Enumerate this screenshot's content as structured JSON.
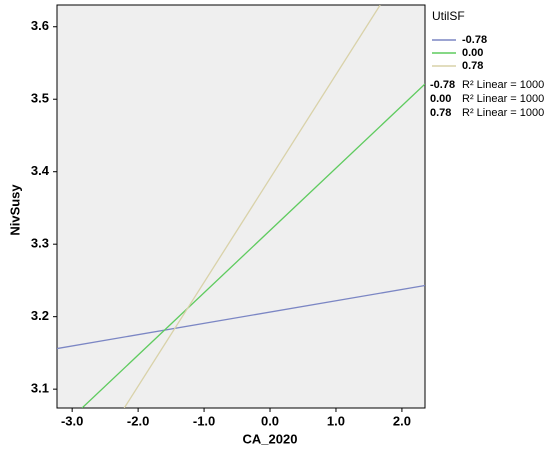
{
  "chart_data": {
    "type": "line",
    "x_label": "CA_2020",
    "y_label": "NivSusy",
    "legend_title": "UtilSF",
    "series": [
      {
        "name": "-0.78",
        "color": "#7b86c4",
        "x": [
          -3.23,
          2.35
        ],
        "y": [
          3.156,
          3.243
        ]
      },
      {
        "name": "0.00",
        "color": "#5fcb5f",
        "x": [
          -2.85,
          2.35
        ],
        "y": [
          3.074,
          3.521
        ]
      },
      {
        "name": "0.78",
        "color": "#d9d2a9",
        "x": [
          -2.21,
          1.67
        ],
        "y": [
          3.074,
          3.63
        ]
      }
    ],
    "fit_labels": [
      {
        "series": "-0.78",
        "text": "R² Linear = 1000"
      },
      {
        "series": "0.00",
        "text": "R² Linear = 1000"
      },
      {
        "series": "0.78",
        "text": "R² Linear = 1000"
      }
    ],
    "xlim": [
      -3.23,
      2.35
    ],
    "ylim": [
      3.074,
      3.63
    ],
    "xticks": [
      {
        "value": -3,
        "label": "-3.0"
      },
      {
        "value": -2,
        "label": "-2.0"
      },
      {
        "value": -1,
        "label": "-1.0"
      },
      {
        "value": 0,
        "label": "0.0"
      },
      {
        "value": 1,
        "label": "1.0"
      },
      {
        "value": 2,
        "label": "2.0"
      }
    ],
    "yticks": [
      3.1,
      3.2,
      3.3,
      3.4,
      3.5,
      3.6
    ]
  }
}
